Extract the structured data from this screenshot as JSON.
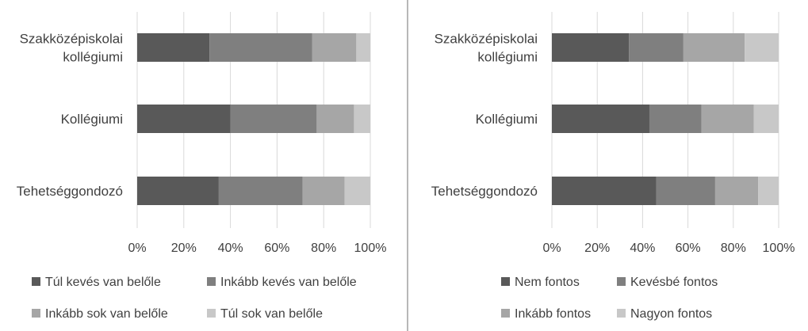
{
  "chart_data": [
    {
      "type": "bar",
      "orientation": "horizontal",
      "stacked": "percent",
      "categories": [
        "Szakközépiskolai kollégiumi",
        "Kollégiumi",
        "Tehetséggondozó"
      ],
      "category_lines": [
        [
          "Szakközépiskolai",
          "kollégiumi"
        ],
        [
          "Kollégiumi"
        ],
        [
          "Tehetséggondozó"
        ]
      ],
      "series": [
        {
          "name": "Túl kevés van belőle",
          "color": "#595959",
          "values": [
            31,
            40,
            35
          ]
        },
        {
          "name": "Inkább kevés van belőle",
          "color": "#7f7f7f",
          "values": [
            44,
            37,
            36
          ]
        },
        {
          "name": "Inkább sok van belőle",
          "color": "#a6a6a6",
          "values": [
            19,
            16,
            18
          ]
        },
        {
          "name": "Túl sok van belőle",
          "color": "#c8c8c8",
          "values": [
            6,
            7,
            11
          ]
        }
      ],
      "xlim": [
        0,
        100
      ],
      "xticks": [
        "0%",
        "20%",
        "40%",
        "60%",
        "80%",
        "100%"
      ],
      "grid": "vertical",
      "legend_position": "bottom"
    },
    {
      "type": "bar",
      "orientation": "horizontal",
      "stacked": "percent",
      "categories": [
        "Szakközépiskolai kollégiumi",
        "Kollégiumi",
        "Tehetséggondozó"
      ],
      "category_lines": [
        [
          "Szakközépiskolai",
          "kollégiumi"
        ],
        [
          "Kollégiumi"
        ],
        [
          "Tehetséggondozó"
        ]
      ],
      "series": [
        {
          "name": "Nem fontos",
          "color": "#595959",
          "values": [
            34,
            43,
            46
          ]
        },
        {
          "name": "Kevésbé fontos",
          "color": "#7f7f7f",
          "values": [
            24,
            23,
            26
          ]
        },
        {
          "name": "Inkább fontos",
          "color": "#a6a6a6",
          "values": [
            27,
            23,
            19
          ]
        },
        {
          "name": "Nagyon fontos",
          "color": "#c8c8c8",
          "values": [
            15,
            11,
            9
          ]
        }
      ],
      "xlim": [
        0,
        100
      ],
      "xticks": [
        "0%",
        "20%",
        "40%",
        "60%",
        "80%",
        "100%"
      ],
      "grid": "vertical",
      "legend_position": "bottom"
    }
  ]
}
